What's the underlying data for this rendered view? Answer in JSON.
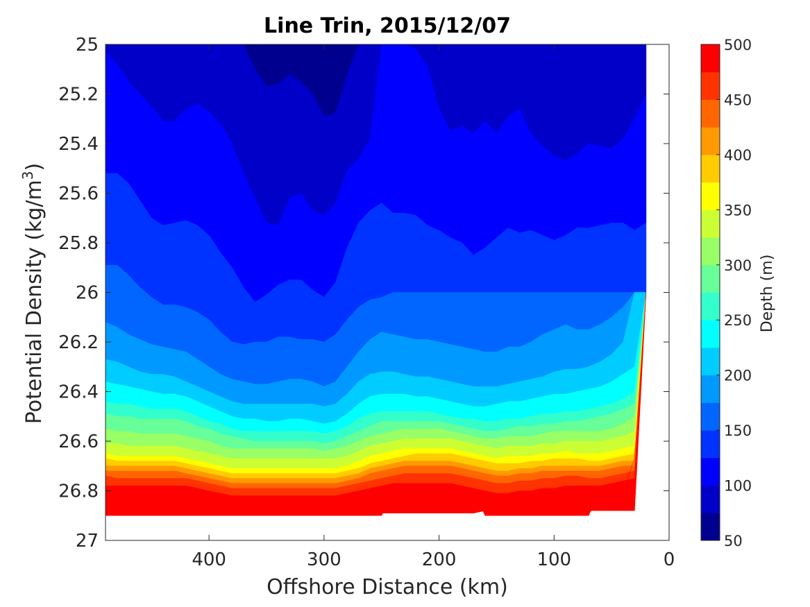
{
  "chart_data": {
    "type": "heatmap",
    "subtype": "filled contour",
    "title": "Line Trin, 2015/12/07",
    "xlabel": "Offshore Distance (km)",
    "ylabel_main": "Potential Density (kg/m",
    "ylabel_sup": "3",
    "ylabel_end": ")",
    "xlim": [
      490,
      0
    ],
    "x_reversed": true,
    "ylim": [
      25,
      27
    ],
    "y_reversed": true,
    "xticks": [
      400,
      300,
      200,
      100,
      0
    ],
    "yticks": [
      25,
      25.2,
      25.4,
      25.6,
      25.8,
      26,
      26.2,
      26.4,
      26.6,
      26.8,
      27
    ],
    "ytick_labels": [
      "25",
      "25.2",
      "25.4",
      "25.6",
      "25.8",
      "26",
      "26.2",
      "26.4",
      "26.6",
      "26.8",
      "27"
    ],
    "colorbar": {
      "label": "Depth (m)",
      "range": [
        50,
        500
      ],
      "levels": [
        50,
        75,
        100,
        125,
        150,
        175,
        200,
        225,
        250,
        275,
        300,
        325,
        350,
        375,
        400,
        425,
        450,
        475,
        500
      ],
      "ticks": [
        50,
        100,
        150,
        200,
        250,
        300,
        350,
        400,
        450,
        500
      ],
      "colormap": "jet",
      "colors": [
        "#00008f",
        "#0000c8",
        "#0000ff",
        "#0033ff",
        "#0066ff",
        "#0099ff",
        "#00ccff",
        "#00ffff",
        "#33ffcc",
        "#66ff99",
        "#99ff66",
        "#ccff33",
        "#ffff00",
        "#ffcc00",
        "#ff9900",
        "#ff6600",
        "#ff3300",
        "#ff0000"
      ]
    },
    "x": [
      490,
      480,
      470,
      460,
      450,
      440,
      430,
      420,
      410,
      400,
      390,
      380,
      370,
      360,
      350,
      340,
      330,
      320,
      310,
      300,
      290,
      280,
      270,
      260,
      250,
      240,
      230,
      220,
      210,
      200,
      190,
      180,
      170,
      160,
      150,
      140,
      130,
      120,
      110,
      100,
      90,
      80,
      70,
      60,
      50,
      40,
      30,
      20
    ],
    "isopycnals": [
      {
        "depth": 50,
        "density": [
          25.0,
          25.0,
          25.0,
          25.0,
          25.0,
          25.0,
          25.0,
          25.0,
          25.0,
          25.0,
          25.0,
          25.0,
          25.0,
          25.1,
          25.17,
          25.16,
          25.12,
          25.15,
          25.2,
          25.29,
          25.28,
          25.12,
          25.0,
          25.0,
          25.0,
          25.0,
          25.0,
          25.0,
          25.0,
          25.0,
          25.0,
          25.0,
          25.0,
          25.0,
          25.0,
          25.0,
          25.0,
          25.0,
          25.0,
          25.0,
          25.0,
          25.0,
          25.0,
          25.0,
          25.0,
          25.0,
          25.0,
          25.0
        ]
      },
      {
        "depth": 75,
        "density": [
          25.03,
          25.08,
          25.15,
          25.2,
          25.25,
          25.31,
          25.31,
          25.26,
          25.24,
          25.27,
          25.32,
          25.4,
          25.52,
          25.62,
          25.72,
          25.73,
          25.62,
          25.6,
          25.67,
          25.69,
          25.64,
          25.51,
          25.46,
          25.38,
          25.0,
          25.0,
          25.0,
          25.02,
          25.09,
          25.26,
          25.35,
          25.33,
          25.36,
          25.31,
          25.36,
          25.29,
          25.26,
          25.36,
          25.41,
          25.45,
          25.47,
          25.44,
          25.4,
          25.41,
          25.42,
          25.38,
          25.3,
          25.2
        ]
      },
      {
        "depth": 100,
        "density": [
          25.52,
          25.52,
          25.56,
          25.63,
          25.7,
          25.73,
          25.72,
          25.71,
          25.73,
          25.77,
          25.84,
          25.9,
          25.98,
          26.04,
          26.01,
          25.97,
          25.95,
          25.95,
          25.99,
          26.02,
          25.96,
          25.82,
          25.72,
          25.67,
          25.64,
          25.68,
          25.68,
          25.69,
          25.73,
          25.75,
          25.78,
          25.8,
          25.85,
          25.82,
          25.78,
          25.74,
          25.76,
          25.75,
          25.77,
          25.79,
          25.77,
          25.74,
          25.74,
          25.73,
          25.72,
          25.72,
          25.75,
          25.72
        ]
      },
      {
        "depth": 125,
        "density": [
          25.89,
          25.89,
          25.93,
          25.98,
          26.02,
          26.05,
          26.05,
          26.06,
          26.08,
          26.11,
          26.16,
          26.2,
          26.21,
          26.2,
          26.2,
          26.18,
          26.18,
          26.19,
          26.19,
          26.2,
          26.17,
          26.11,
          26.06,
          26.03,
          26.02,
          26.0,
          26.0,
          26.0,
          26.0,
          26.0,
          26.0,
          26.0,
          26.0,
          26.0,
          26.0,
          26.0,
          26.0,
          26.0,
          26.0,
          26.0,
          26.0,
          26.0,
          26.0,
          26.0,
          26.0,
          26.0,
          26.0,
          26.0
        ]
      },
      {
        "depth": 150,
        "density": [
          26.12,
          26.14,
          26.17,
          26.19,
          26.21,
          26.22,
          26.23,
          26.24,
          26.27,
          26.3,
          26.33,
          26.35,
          26.36,
          26.37,
          26.37,
          26.36,
          26.35,
          26.35,
          26.36,
          26.38,
          26.36,
          26.3,
          26.24,
          26.19,
          26.16,
          26.17,
          26.18,
          26.19,
          26.19,
          26.2,
          26.21,
          26.22,
          26.23,
          26.24,
          26.24,
          26.22,
          26.22,
          26.2,
          26.17,
          26.15,
          26.13,
          26.15,
          26.15,
          26.13,
          26.1,
          26.06,
          26.0,
          26.0
        ]
      },
      {
        "depth": 175,
        "density": [
          26.27,
          26.28,
          26.3,
          26.32,
          26.33,
          26.33,
          26.34,
          26.36,
          26.38,
          26.4,
          26.42,
          26.44,
          26.45,
          26.45,
          26.45,
          26.45,
          26.45,
          26.45,
          26.45,
          26.46,
          26.45,
          26.41,
          26.36,
          26.33,
          26.32,
          26.32,
          26.33,
          26.34,
          26.34,
          26.35,
          26.36,
          26.37,
          26.38,
          26.38,
          26.38,
          26.37,
          26.36,
          26.35,
          26.34,
          26.32,
          26.31,
          26.31,
          26.3,
          26.28,
          26.25,
          26.2,
          26.0,
          26.0
        ]
      },
      {
        "depth": 200,
        "density": [
          26.36,
          26.37,
          26.38,
          26.39,
          26.4,
          26.41,
          26.41,
          26.42,
          26.44,
          26.46,
          26.48,
          26.5,
          26.51,
          26.51,
          26.52,
          26.52,
          26.51,
          26.51,
          26.52,
          26.53,
          26.52,
          26.49,
          26.45,
          26.42,
          26.41,
          26.41,
          26.41,
          26.42,
          26.42,
          26.43,
          26.44,
          26.45,
          26.46,
          26.46,
          26.45,
          26.44,
          26.44,
          26.43,
          26.42,
          26.41,
          26.41,
          26.4,
          26.39,
          26.38,
          26.36,
          26.33,
          26.3,
          26.0
        ]
      },
      {
        "depth": 225,
        "density": [
          26.44,
          26.45,
          26.45,
          26.46,
          26.47,
          26.47,
          26.47,
          26.48,
          26.5,
          26.52,
          26.53,
          26.55,
          26.56,
          26.56,
          26.56,
          26.56,
          26.56,
          26.56,
          26.56,
          26.57,
          26.56,
          26.54,
          26.51,
          26.49,
          26.48,
          26.48,
          26.48,
          26.48,
          26.48,
          26.49,
          26.5,
          26.51,
          26.51,
          26.52,
          26.52,
          26.51,
          26.51,
          26.5,
          26.49,
          26.49,
          26.48,
          26.48,
          26.47,
          26.46,
          26.45,
          26.43,
          26.4,
          26.0
        ]
      },
      {
        "depth": 250,
        "density": [
          26.49,
          26.5,
          26.5,
          26.51,
          26.51,
          26.51,
          26.51,
          26.52,
          26.54,
          26.55,
          26.57,
          26.58,
          26.59,
          26.6,
          26.6,
          26.6,
          26.6,
          26.6,
          26.6,
          26.61,
          26.6,
          26.58,
          26.56,
          26.54,
          26.52,
          26.52,
          26.52,
          26.52,
          26.52,
          26.52,
          26.53,
          26.54,
          26.55,
          26.56,
          26.56,
          26.55,
          26.54,
          26.54,
          26.53,
          26.53,
          26.52,
          26.52,
          26.51,
          26.5,
          26.49,
          26.47,
          26.45,
          26.0
        ]
      },
      {
        "depth": 275,
        "density": [
          26.55,
          26.56,
          26.56,
          26.57,
          26.57,
          26.57,
          26.57,
          26.58,
          26.59,
          26.6,
          26.62,
          26.63,
          26.63,
          26.63,
          26.63,
          26.63,
          26.63,
          26.63,
          26.63,
          26.64,
          26.63,
          26.62,
          26.6,
          26.58,
          26.57,
          26.56,
          26.55,
          26.55,
          26.55,
          26.55,
          26.56,
          26.57,
          26.58,
          26.59,
          26.59,
          26.58,
          26.58,
          26.58,
          26.57,
          26.56,
          26.56,
          26.56,
          26.56,
          26.56,
          26.55,
          26.53,
          26.5,
          26.0
        ]
      },
      {
        "depth": 300,
        "density": [
          26.61,
          26.61,
          26.62,
          26.62,
          26.62,
          26.62,
          26.62,
          26.63,
          26.64,
          26.65,
          26.66,
          26.67,
          26.67,
          26.67,
          26.67,
          26.67,
          26.67,
          26.67,
          26.67,
          26.67,
          26.67,
          26.66,
          26.64,
          26.62,
          26.61,
          26.6,
          26.59,
          26.59,
          26.59,
          26.59,
          26.59,
          26.6,
          26.61,
          26.62,
          26.63,
          26.62,
          26.62,
          26.62,
          26.61,
          26.61,
          26.6,
          26.6,
          26.6,
          26.6,
          26.59,
          26.58,
          26.56,
          26.0
        ]
      },
      {
        "depth": 325,
        "density": [
          26.65,
          26.66,
          26.66,
          26.66,
          26.66,
          26.66,
          26.66,
          26.67,
          26.68,
          26.69,
          26.7,
          26.71,
          26.71,
          26.71,
          26.71,
          26.71,
          26.71,
          26.71,
          26.71,
          26.71,
          26.71,
          26.7,
          26.68,
          26.66,
          26.65,
          26.64,
          26.63,
          26.63,
          26.63,
          26.63,
          26.63,
          26.64,
          26.65,
          26.66,
          26.67,
          26.66,
          26.66,
          26.66,
          26.65,
          26.65,
          26.64,
          26.65,
          26.65,
          26.65,
          26.64,
          26.63,
          26.62,
          26.0
        ]
      },
      {
        "depth": 350,
        "density": [
          26.67,
          26.68,
          26.68,
          26.68,
          26.68,
          26.68,
          26.68,
          26.69,
          26.7,
          26.71,
          26.72,
          26.73,
          26.73,
          26.73,
          26.73,
          26.73,
          26.73,
          26.73,
          26.73,
          26.73,
          26.73,
          26.72,
          26.71,
          26.69,
          26.68,
          26.67,
          26.66,
          26.65,
          26.65,
          26.65,
          26.65,
          26.66,
          26.67,
          26.68,
          26.69,
          26.69,
          26.69,
          26.68,
          26.68,
          26.67,
          26.67,
          26.67,
          26.68,
          26.68,
          26.67,
          26.66,
          26.65,
          26.0
        ]
      },
      {
        "depth": 375,
        "density": [
          26.7,
          26.7,
          26.7,
          26.7,
          26.7,
          26.7,
          26.7,
          26.71,
          26.72,
          26.73,
          26.74,
          26.75,
          26.75,
          26.75,
          26.75,
          26.75,
          26.75,
          26.75,
          26.75,
          26.75,
          26.75,
          26.74,
          26.73,
          26.71,
          26.7,
          26.69,
          26.68,
          26.68,
          26.68,
          26.68,
          26.68,
          26.69,
          26.7,
          26.71,
          26.72,
          26.72,
          26.71,
          26.71,
          26.7,
          26.7,
          26.7,
          26.7,
          26.7,
          26.7,
          26.69,
          26.68,
          26.68,
          26.0
        ]
      },
      {
        "depth": 400,
        "density": [
          26.72,
          26.72,
          26.72,
          26.72,
          26.72,
          26.72,
          26.72,
          26.73,
          26.74,
          26.75,
          26.76,
          26.77,
          26.77,
          26.77,
          26.77,
          26.77,
          26.77,
          26.77,
          26.77,
          26.77,
          26.77,
          26.76,
          26.75,
          26.73,
          26.72,
          26.71,
          26.7,
          26.7,
          26.7,
          26.7,
          26.7,
          26.71,
          26.72,
          26.73,
          26.74,
          26.74,
          26.73,
          26.73,
          26.72,
          26.72,
          26.72,
          26.72,
          26.72,
          26.72,
          26.71,
          26.7,
          26.7,
          26.0
        ]
      },
      {
        "depth": 425,
        "density": [
          26.74,
          26.75,
          26.75,
          26.75,
          26.75,
          26.75,
          26.75,
          26.75,
          26.76,
          26.77,
          26.78,
          26.79,
          26.79,
          26.79,
          26.79,
          26.79,
          26.79,
          26.79,
          26.79,
          26.79,
          26.79,
          26.78,
          26.77,
          26.76,
          26.75,
          26.74,
          26.73,
          26.73,
          26.73,
          26.73,
          26.73,
          26.74,
          26.75,
          26.76,
          26.77,
          26.77,
          26.76,
          26.76,
          26.75,
          26.75,
          26.74,
          26.74,
          26.75,
          26.75,
          26.74,
          26.73,
          26.72,
          26.0
        ]
      },
      {
        "depth": 450,
        "density": [
          26.78,
          26.78,
          26.78,
          26.78,
          26.78,
          26.78,
          26.78,
          26.78,
          26.79,
          26.8,
          26.81,
          26.82,
          26.82,
          26.82,
          26.82,
          26.82,
          26.82,
          26.82,
          26.82,
          26.82,
          26.82,
          26.81,
          26.8,
          26.79,
          26.78,
          26.77,
          26.77,
          26.77,
          26.77,
          26.77,
          26.77,
          26.78,
          26.79,
          26.8,
          26.81,
          26.81,
          26.8,
          26.8,
          26.79,
          26.79,
          26.78,
          26.78,
          26.78,
          26.78,
          26.77,
          26.76,
          26.75,
          26.0
        ]
      },
      {
        "depth": 475,
        "density": [
          26.88,
          26.88,
          26.88,
          26.88,
          26.88,
          26.88,
          26.87,
          26.87,
          26.88,
          26.88,
          26.89,
          26.89,
          26.89,
          26.89,
          26.89,
          26.89,
          26.89,
          26.89,
          26.89,
          26.89,
          26.89,
          26.89,
          26.89,
          26.89,
          26.89,
          26.89,
          26.89,
          26.89,
          26.89,
          26.89,
          26.89,
          26.89,
          26.89,
          26.88,
          26.88,
          26.88,
          26.88,
          26.87,
          26.87,
          26.87,
          26.87,
          26.88,
          26.88,
          26.88,
          26.88,
          26.88,
          26.88,
          26.0
        ]
      }
    ],
    "data_bottom": [
      26.9,
      26.9,
      26.9,
      26.9,
      26.9,
      26.9,
      26.9,
      26.9,
      26.9,
      26.9,
      26.9,
      26.9,
      26.9,
      26.9,
      26.9,
      26.9,
      26.9,
      26.9,
      26.9,
      26.9,
      26.9,
      26.9,
      26.9,
      26.9,
      26.9,
      26.8,
      26.8,
      26.8,
      26.8,
      26.8,
      26.8,
      26.8,
      26.8,
      26.9,
      26.9,
      26.9,
      26.9,
      26.9,
      26.9,
      26.9,
      26.9,
      26.9,
      26.9,
      26.8,
      26.8,
      26.8,
      26.67,
      26.0
    ],
    "data_top": [
      25.0,
      25.0,
      25.0,
      25.0,
      25.0,
      25.0,
      25.0,
      25.0,
      25.0,
      25.0,
      25.0,
      25.0,
      25.0,
      25.0,
      25.0,
      25.0,
      25.0,
      25.0,
      25.0,
      25.0,
      25.0,
      25.0,
      25.0,
      25.0,
      25.0,
      25.0,
      25.0,
      25.0,
      25.0,
      25.0,
      25.0,
      25.0,
      25.0,
      25.0,
      25.0,
      25.0,
      25.0,
      25.0,
      25.0,
      25.0,
      25.0,
      25.0,
      25.0,
      25.0,
      25.0,
      25.0,
      25.0,
      25.0
    ]
  }
}
